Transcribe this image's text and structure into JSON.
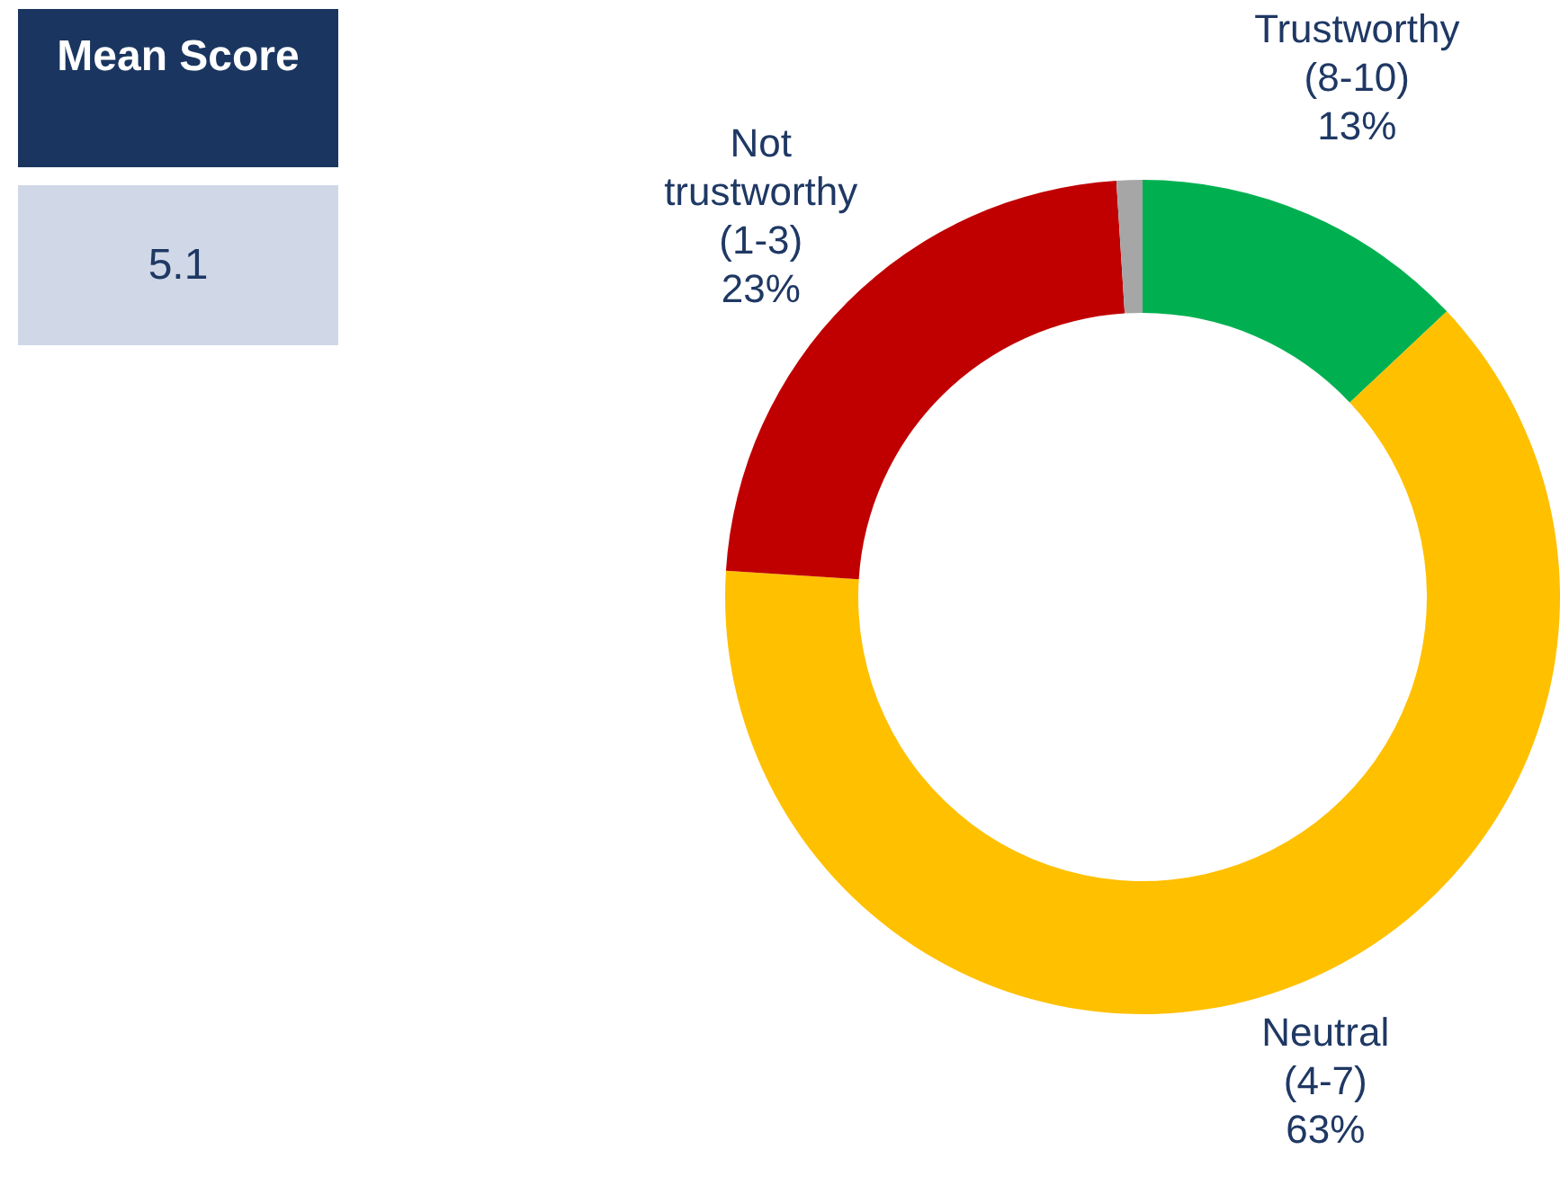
{
  "chart_data": [
    {
      "type": "donut",
      "categories": [
        "Trustworthy (8-10)",
        "Neutral (4-7)",
        "Not trustworthy (1-3)",
        null
      ],
      "values": [
        13,
        63,
        23,
        1
      ],
      "colors": [
        "#00b050",
        "#ffc000",
        "#c00000",
        "#a6a6a6"
      ],
      "value_labels": [
        "13%",
        "63%",
        "23%",
        null
      ]
    },
    {
      "type": "other",
      "title": "Mean Score",
      "annotations": [
        "5.1"
      ]
    }
  ]
}
